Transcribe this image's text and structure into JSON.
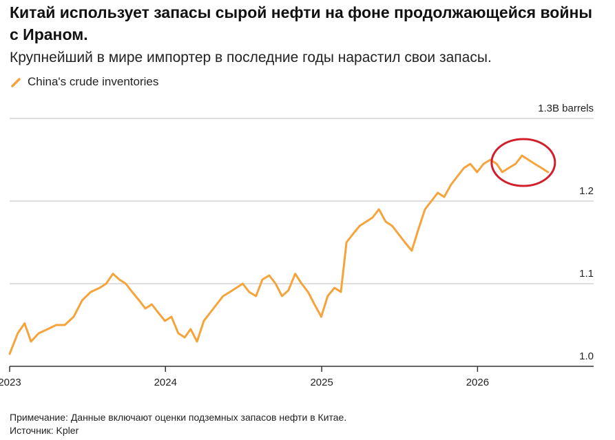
{
  "title": "Китай использует запасы сырой нефти на фоне продолжающейся войны с Ираном.",
  "subtitle": "Крупнейший в мире импортер в последние годы нарастил свои запасы.",
  "note": "Примечание: Данные включают оценки подземных запасов нефти в Китае.",
  "source": "Источник: Kpler",
  "colors": {
    "series": "#f5a33a",
    "annotation_circle": "#d21f2b",
    "grid": "#bdbdbd",
    "axis": "#333333"
  },
  "chart_data": {
    "type": "line",
    "series": [
      {
        "name": "China's crude inventories",
        "x": [
          "2023-01-01",
          "2023-01-20",
          "2023-02-05",
          "2023-02-20",
          "2023-03-10",
          "2023-03-31",
          "2023-04-20",
          "2023-05-10",
          "2023-05-31",
          "2023-06-20",
          "2023-07-10",
          "2023-07-31",
          "2023-08-15",
          "2023-08-31",
          "2023-09-15",
          "2023-09-30",
          "2023-10-15",
          "2023-10-31",
          "2023-11-15",
          "2023-11-30",
          "2023-12-15",
          "2023-12-31",
          "2024-01-15",
          "2024-01-31",
          "2024-02-15",
          "2024-02-29",
          "2024-03-15",
          "2024-03-31",
          "2024-04-15",
          "2024-04-30",
          "2024-05-15",
          "2024-05-31",
          "2024-06-15",
          "2024-06-30",
          "2024-07-15",
          "2024-07-31",
          "2024-08-15",
          "2024-08-31",
          "2024-09-15",
          "2024-09-30",
          "2024-10-15",
          "2024-10-31",
          "2024-11-15",
          "2024-11-30",
          "2024-12-15",
          "2024-12-31",
          "2025-01-15",
          "2025-01-31",
          "2025-02-15",
          "2025-02-28",
          "2025-03-15",
          "2025-03-31",
          "2025-04-15",
          "2025-04-30",
          "2025-05-15",
          "2025-05-31",
          "2025-06-15",
          "2025-06-30",
          "2025-07-15",
          "2025-07-31",
          "2025-08-15",
          "2025-08-31",
          "2025-09-15",
          "2025-09-30",
          "2025-10-15",
          "2025-10-31",
          "2025-11-15",
          "2025-11-30",
          "2025-12-15",
          "2025-12-31",
          "2026-01-15",
          "2026-01-31",
          "2026-02-15",
          "2026-02-28",
          "2026-03-15",
          "2026-03-31",
          "2026-04-15",
          "2026-04-30",
          "2026-05-15",
          "2026-05-31",
          "2026-06-15"
        ],
        "values": [
          1.015,
          1.04,
          1.052,
          1.03,
          1.04,
          1.045,
          1.05,
          1.05,
          1.06,
          1.08,
          1.09,
          1.095,
          1.1,
          1.112,
          1.105,
          1.1,
          1.09,
          1.08,
          1.07,
          1.075,
          1.065,
          1.055,
          1.06,
          1.04,
          1.035,
          1.045,
          1.03,
          1.055,
          1.065,
          1.075,
          1.085,
          1.09,
          1.095,
          1.1,
          1.09,
          1.085,
          1.105,
          1.11,
          1.1,
          1.085,
          1.092,
          1.112,
          1.1,
          1.09,
          1.075,
          1.06,
          1.085,
          1.095,
          1.09,
          1.15,
          1.16,
          1.17,
          1.175,
          1.18,
          1.19,
          1.175,
          1.17,
          1.16,
          1.15,
          1.14,
          1.165,
          1.19,
          1.2,
          1.21,
          1.205,
          1.22,
          1.23,
          1.24,
          1.245,
          1.235,
          1.245,
          1.25,
          1.245,
          1.235,
          1.24,
          1.245,
          1.255,
          1.25,
          1.245,
          1.24,
          1.235
        ]
      }
    ],
    "xticks": [
      "2023",
      "2024",
      "2025",
      "2026"
    ],
    "xtick_dates": [
      "2023-01-01",
      "2024-01-01",
      "2025-01-01",
      "2026-01-01"
    ],
    "yticks": [
      1.0,
      1.1,
      1.2,
      1.3
    ],
    "ytick_labels": [
      "1.0",
      "1.1",
      "1.2",
      "1.3B barrels"
    ],
    "ylim": [
      1.0,
      1.3
    ],
    "xlim": [
      "2023-01-01",
      "2026-09-30"
    ],
    "grid": "horizontal",
    "legend": "top-left",
    "annotation": "red ellipse highlighting the most recent peak"
  }
}
